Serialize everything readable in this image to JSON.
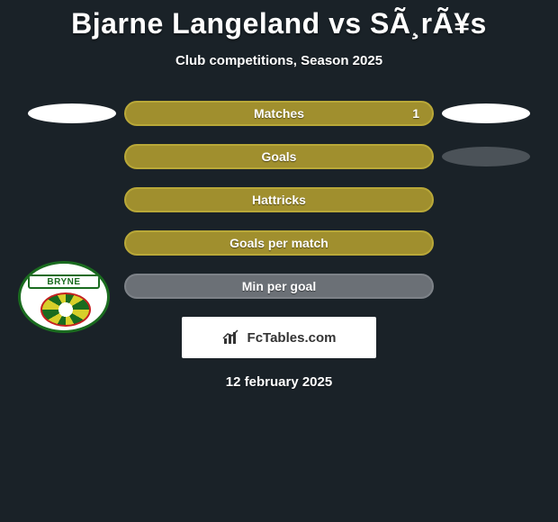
{
  "header": {
    "title": "Bjarne Langeland vs SÃ¸rÃ¥s",
    "subtitle": "Club competitions, Season 2025"
  },
  "colors": {
    "background": "#1a2228",
    "bar_fill": "#a08f2e",
    "bar_border": "#b9a838",
    "bar_dark": "#6b7076",
    "bar_dark_border": "#7d8288",
    "text": "#ffffff"
  },
  "left_badge": {
    "label": "BRYNE",
    "outer_ring": "#1a6b1f",
    "ball_ring": "#c52020",
    "ball_stripe_a": "#1a6b1f",
    "ball_stripe_b": "#d7cf2a"
  },
  "rows": [
    {
      "label": "Matches",
      "left_val": "",
      "right_val": "1",
      "fill_pct_left": 0,
      "fill_color": "#a08f2e",
      "show_left_oval": true,
      "left_oval_class": "oval-white",
      "show_right_oval": true,
      "right_oval_class": "oval-white"
    },
    {
      "label": "Goals",
      "left_val": "",
      "right_val": "",
      "fill_pct_left": 100,
      "fill_color": "#a08f2e",
      "show_left_oval": false,
      "show_right_oval": true,
      "right_oval_class": "oval-grey"
    },
    {
      "label": "Hattricks",
      "left_val": "",
      "right_val": "",
      "fill_pct_left": 100,
      "fill_color": "#a08f2e",
      "show_left_oval": false,
      "show_right_oval": false
    },
    {
      "label": "Goals per match",
      "left_val": "",
      "right_val": "",
      "fill_pct_left": 100,
      "fill_color": "#a08f2e",
      "show_left_oval": false,
      "show_right_oval": false
    },
    {
      "label": "Min per goal",
      "left_val": "",
      "right_val": "",
      "fill_pct_left": 100,
      "fill_color": "#6b7076",
      "show_left_oval": false,
      "show_right_oval": false
    }
  ],
  "footer": {
    "brand_text": "FcTables.com",
    "date": "12 february 2025"
  }
}
